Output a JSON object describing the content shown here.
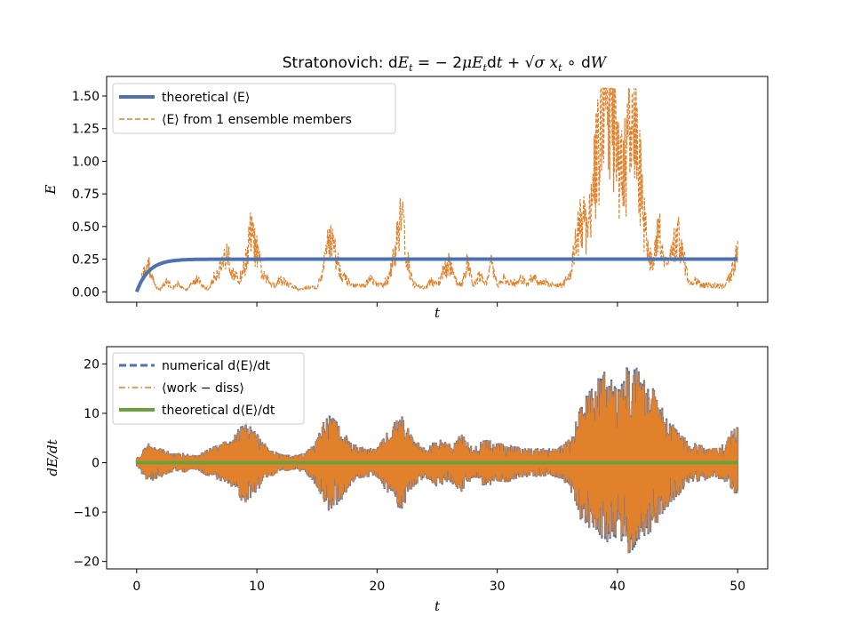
{
  "figure": {
    "title": "Stratonovich: dE_t = − 2μE_t dt + √σ x_t ∘ dW"
  },
  "chart_data": [
    {
      "type": "line",
      "title": "Stratonovich: dE_t = − 2μE_t dt + √σ x_t ∘ dW",
      "xlabel": "t",
      "ylabel": "E",
      "xlim": [
        -2.5,
        52.5
      ],
      "ylim": [
        -0.08,
        1.65
      ],
      "xticks": [
        0,
        10,
        20,
        30,
        40,
        50
      ],
      "xtick_labels_visible": false,
      "yticks": [
        0.0,
        0.25,
        0.5,
        0.75,
        1.0,
        1.25,
        1.5
      ],
      "ytick_labels": [
        "0.00",
        "0.25",
        "0.50",
        "0.75",
        "1.00",
        "1.25",
        "1.50"
      ],
      "grid": false,
      "legend_position": "top-left",
      "series": [
        {
          "name": "theoretical ⟨E⟩",
          "color": "#4c72b0",
          "style": "solid",
          "curve": {
            "asymptote": 0.25,
            "rate": 0.5,
            "t_start": 0,
            "t_end": 50
          }
        },
        {
          "name": "⟨E⟩ from 1 ensemble members",
          "color": "#e1812c",
          "style": "dashed",
          "x": [
            0,
            0.5,
            1,
            1.5,
            2,
            2.5,
            3,
            3.5,
            4,
            4.5,
            5,
            5.5,
            6,
            6.5,
            7,
            7.5,
            8,
            8.5,
            9,
            9.5,
            10,
            10.5,
            11,
            11.5,
            12,
            12.5,
            13,
            13.5,
            14,
            14.5,
            15,
            15.5,
            16,
            16.5,
            17,
            17.5,
            18,
            18.5,
            19,
            19.5,
            20,
            20.5,
            21,
            21.5,
            22,
            22.5,
            23,
            23.5,
            24,
            24.5,
            25,
            25.5,
            26,
            26.5,
            27,
            27.5,
            28,
            28.5,
            29,
            29.5,
            30,
            30.5,
            31,
            31.5,
            32,
            32.5,
            33,
            33.5,
            34,
            34.5,
            35,
            35.5,
            36,
            36.5,
            37,
            37.5,
            38,
            38.5,
            39,
            39.5,
            40,
            40.5,
            41,
            41.5,
            42,
            42.5,
            43,
            43.5,
            44,
            44.5,
            45,
            45.5,
            46,
            46.5,
            47,
            47.5,
            48,
            48.5,
            49,
            49.5,
            50
          ],
          "y": [
            0.0,
            0.12,
            0.2,
            0.05,
            0.02,
            0.08,
            0.03,
            0.06,
            0.01,
            0.05,
            0.1,
            0.04,
            0.02,
            0.12,
            0.2,
            0.3,
            0.15,
            0.08,
            0.2,
            0.45,
            0.3,
            0.12,
            0.08,
            0.05,
            0.1,
            0.06,
            0.04,
            0.02,
            0.03,
            0.04,
            0.03,
            0.15,
            0.45,
            0.3,
            0.15,
            0.08,
            0.05,
            0.04,
            0.05,
            0.1,
            0.05,
            0.06,
            0.1,
            0.3,
            0.65,
            0.25,
            0.06,
            0.04,
            0.03,
            0.08,
            0.05,
            0.15,
            0.22,
            0.08,
            0.05,
            0.22,
            0.05,
            0.12,
            0.06,
            0.2,
            0.05,
            0.1,
            0.06,
            0.07,
            0.1,
            0.05,
            0.12,
            0.06,
            0.08,
            0.05,
            0.05,
            0.06,
            0.12,
            0.35,
            0.55,
            0.45,
            0.8,
            1.2,
            1.55,
            1.3,
            1.0,
            0.85,
            1.3,
            1.15,
            0.75,
            0.3,
            0.2,
            0.5,
            0.2,
            0.25,
            0.45,
            0.25,
            0.05,
            0.08,
            0.05,
            0.05,
            0.05,
            0.04,
            0.05,
            0.15,
            0.3
          ]
        }
      ]
    },
    {
      "type": "line",
      "xlabel": "t",
      "ylabel": "dE/dt",
      "xlim": [
        -2.5,
        52.5
      ],
      "ylim": [
        -21.5,
        23.5
      ],
      "xticks": [
        0,
        10,
        20,
        30,
        40,
        50
      ],
      "xtick_labels": [
        "0",
        "10",
        "20",
        "30",
        "40",
        "50"
      ],
      "yticks": [
        -20,
        -10,
        0,
        10,
        20
      ],
      "ytick_labels": [
        "−20",
        "−10",
        "0",
        "10",
        "20"
      ],
      "grid": false,
      "legend_position": "top-left",
      "series": [
        {
          "name": "numerical d⟨E⟩/dt",
          "color": "#4c72b0",
          "style": "dashed",
          "envelope": {
            "x": [
              0,
              1,
              2,
              3,
              4,
              5,
              6,
              7,
              8,
              9,
              10,
              11,
              12,
              13,
              14,
              15,
              16,
              17,
              18,
              19,
              20,
              21,
              22,
              23,
              24,
              25,
              26,
              27,
              28,
              29,
              30,
              31,
              32,
              33,
              34,
              35,
              36,
              37,
              38,
              39,
              40,
              41,
              42,
              43,
              44,
              45,
              46,
              47,
              48,
              49,
              50
            ],
            "upper": [
              1,
              4,
              3,
              2,
              2,
              1.5,
              3,
              4,
              5,
              9,
              6,
              3,
              2,
              1.5,
              2,
              5,
              11,
              7,
              4,
              3,
              3,
              7,
              10,
              5,
              3,
              5,
              4,
              6,
              3,
              5,
              4,
              4,
              3,
              3,
              3,
              3,
              5,
              12,
              16,
              19,
              15,
              21,
              18,
              15,
              10,
              7,
              4,
              4,
              3,
              4,
              9
            ],
            "lower": [
              -1,
              -4,
              -3,
              -2,
              -2,
              -1.5,
              -3,
              -4,
              -5,
              -9,
              -6,
              -3,
              -2,
              -1.5,
              -2,
              -5,
              -10,
              -8,
              -4,
              -3,
              -3,
              -7,
              -10,
              -5,
              -3,
              -5,
              -4,
              -6,
              -3,
              -5,
              -4,
              -4,
              -3,
              -3,
              -3,
              -3,
              -5,
              -12,
              -14,
              -17,
              -15,
              -19,
              -16,
              -14,
              -10,
              -7,
              -4,
              -4,
              -3,
              -4,
              -7
            ]
          }
        },
        {
          "name": "⟨work − diss⟩",
          "color": "#e1812c",
          "style": "dashdot"
        },
        {
          "name": "theoretical d⟨E⟩/dt",
          "color": "#6aa23a",
          "style": "solid",
          "value": 0
        }
      ]
    }
  ]
}
